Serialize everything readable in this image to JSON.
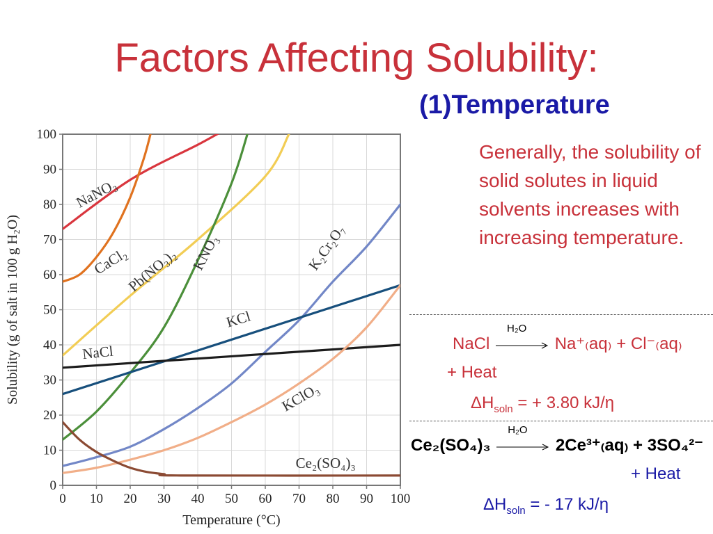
{
  "slide": {
    "title": "Factors Affecting Solubility:",
    "subtitle": "(1)Temperature",
    "description": "Generally, the solubility of solid solutes in liquid solvents increases with increasing temperature."
  },
  "equations": {
    "eq1": {
      "reactant": "NaCl",
      "solvent": "H₂O",
      "products": "Na⁺₍aq₎ + Cl⁻₍aq₎",
      "heat": "+ Heat",
      "dh_label": "ΔH",
      "dh_sub": "soln",
      "dh_value": " = + 3.80 kJ/η"
    },
    "eq2": {
      "reactant": "Ce₂(SO₄)₃",
      "solvent": "H₂O",
      "products": "2Ce³⁺₍aq₎ + 3SO₄²⁻",
      "heat": "+ Heat",
      "dh_label": "ΔH",
      "dh_sub": "soln",
      "dh_value": " = - 17 kJ/η"
    }
  },
  "chart_data": {
    "type": "line",
    "title": "",
    "xlabel": "Temperature (°C)",
    "ylabel": "Solubility (g of salt in 100 g H₂O)",
    "xlim": [
      0,
      100
    ],
    "ylim": [
      0,
      100
    ],
    "xticks": [
      0,
      10,
      20,
      30,
      40,
      50,
      60,
      70,
      80,
      90,
      100
    ],
    "yticks": [
      0,
      10,
      20,
      30,
      40,
      50,
      60,
      70,
      80,
      90,
      100
    ],
    "grid": true,
    "series": [
      {
        "name": "NaNO3",
        "label": "NaNO₃",
        "color": "#d9363e",
        "x": [
          0,
          20,
          40,
          50,
          70
        ],
        "y": [
          73,
          87,
          97,
          102,
          110
        ]
      },
      {
        "name": "CaCl2",
        "label": "CaCl₂",
        "color": "#e0721f",
        "x": [
          0,
          5,
          10,
          15,
          20,
          24,
          26,
          27
        ],
        "y": [
          58,
          60,
          65,
          72,
          82,
          93,
          100,
          104
        ]
      },
      {
        "name": "Pb(NO3)2",
        "label": "Pb(NO₃)₂",
        "color": "#f2cd55",
        "x": [
          0,
          20,
          40,
          60,
          67
        ],
        "y": [
          37,
          54,
          70,
          88,
          100
        ]
      },
      {
        "name": "KNO3",
        "label": "KNO₃",
        "color": "#4b8f3a",
        "x": [
          0,
          10,
          20,
          30,
          40,
          50,
          55
        ],
        "y": [
          13,
          21,
          32,
          45,
          64,
          86,
          101
        ]
      },
      {
        "name": "K2Cr2O7",
        "label": "K₂Cr₂O₇",
        "color": "#7287c7",
        "x": [
          0,
          10,
          20,
          30,
          40,
          50,
          60,
          70,
          80,
          90,
          100
        ],
        "y": [
          5.5,
          8,
          11,
          16,
          22,
          29,
          38,
          47,
          58,
          68,
          80
        ]
      },
      {
        "name": "KCl",
        "label": "KCl",
        "color": "#174f7c",
        "x": [
          0,
          100
        ],
        "y": [
          26,
          57
        ]
      },
      {
        "name": "NaCl",
        "label": "NaCl",
        "color": "#1c1c1c",
        "x": [
          0,
          100
        ],
        "y": [
          33.5,
          40
        ]
      },
      {
        "name": "KClO3",
        "label": "KClO₃",
        "color": "#f1ae88",
        "x": [
          0,
          10,
          20,
          30,
          40,
          50,
          60,
          70,
          80,
          90,
          100
        ],
        "y": [
          3.5,
          5,
          7.3,
          10,
          13.5,
          18,
          23,
          29,
          36,
          45,
          57
        ]
      },
      {
        "name": "Ce2(SO4)3",
        "label": "Ce₂(SO₄)₃",
        "color": "#8b4a33",
        "x": [
          0,
          5,
          10,
          15,
          20,
          25,
          30,
          35,
          100
        ],
        "y": [
          18,
          13,
          9.5,
          7,
          5,
          3.8,
          3.2,
          2.8,
          2.8
        ]
      }
    ]
  }
}
